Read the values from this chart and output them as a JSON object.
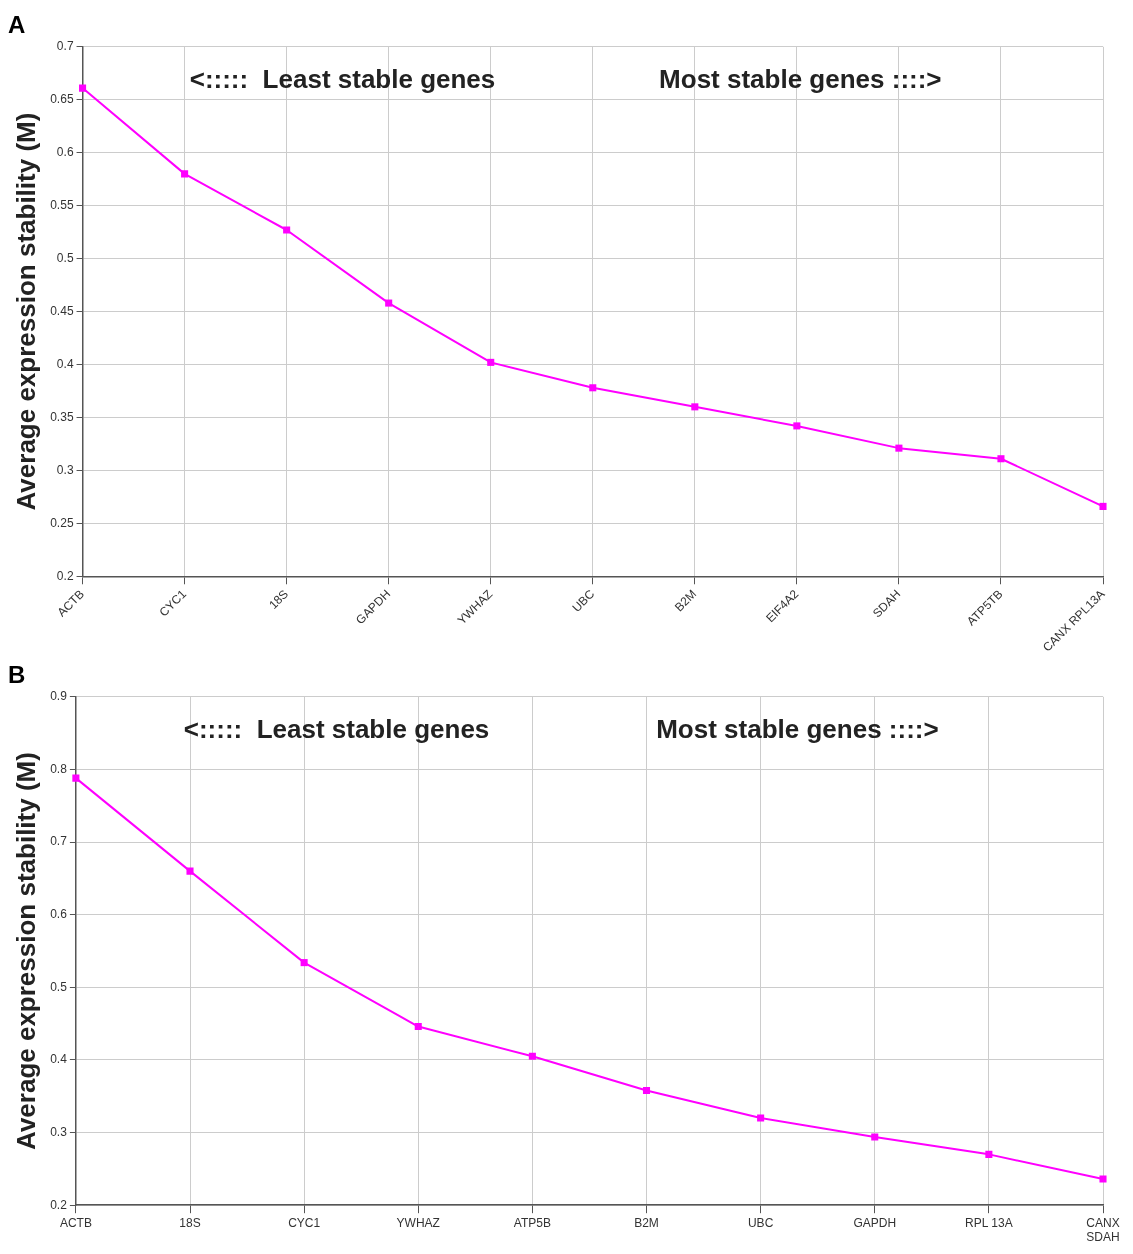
{
  "chart_data": [
    {
      "type": "line",
      "title": "A",
      "ylabel": "Average expression stability (M)",
      "categories": [
        "ACTB",
        "CYC1",
        "18S",
        "GAPDH",
        "YWHAZ",
        "UBC",
        "B2M",
        "EIF4A2",
        "SDAH",
        "ATP5TB",
        "CANX RPL13A"
      ],
      "series": [
        {
          "color": "#ff00ff",
          "values": [
            0.661,
            0.58,
            0.527,
            0.458,
            0.402,
            0.378,
            0.36,
            0.342,
            0.321,
            0.311,
            0.266
          ]
        }
      ],
      "ylim": [
        0.2,
        0.7
      ],
      "yticks": [
        0.2,
        0.25,
        0.3,
        0.35,
        0.4,
        0.45,
        0.5,
        0.55,
        0.6,
        0.65,
        0.7
      ],
      "grid": true,
      "marker": "square",
      "line_style": "solid",
      "legend": false,
      "annotations": [
        "<:::::  Least stable genes",
        "Most stable genes ::::>"
      ]
    },
    {
      "type": "line",
      "title": "B",
      "ylabel": "Average expression stability (M)",
      "categories": [
        "ACTB",
        "18S",
        "CYC1",
        "YWHAZ",
        "ATP5B",
        "B2M",
        "UBC",
        "GAPDH",
        "RPL 13A",
        "CANX SDAH"
      ],
      "series": [
        {
          "color": "#ff00ff",
          "values": [
            0.788,
            0.66,
            0.534,
            0.446,
            0.405,
            0.358,
            0.32,
            0.294,
            0.27,
            0.236
          ]
        }
      ],
      "ylim": [
        0.2,
        0.9
      ],
      "yticks": [
        0.2,
        0.3,
        0.4,
        0.5,
        0.6,
        0.7,
        0.8,
        0.9
      ],
      "grid": true,
      "marker": "square",
      "line_style": "solid",
      "legend": false,
      "annotations": [
        "<:::::  Least stable genes",
        "Most stable genes ::::>"
      ]
    }
  ]
}
